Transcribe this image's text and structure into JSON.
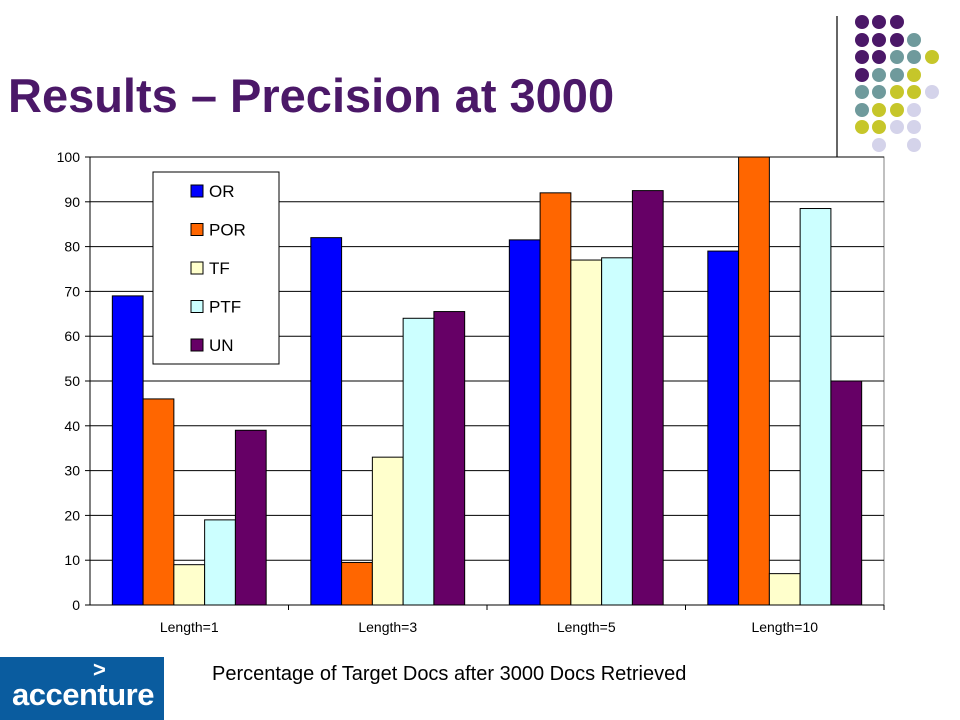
{
  "slide": {
    "title": "Results – Precision at 3000",
    "caption": "Percentage of Target Docs after 3000 Docs Retrieved",
    "logo_text": "accenture",
    "logo_mark": ">"
  },
  "colors": {
    "title": "#4b1868",
    "dot_purple": "#4b1868",
    "dot_teal": "#6f9a9c",
    "dot_lime": "#c6c62a",
    "dot_lavender": "#d4d3ea",
    "logo_bg": "#0a5c9f"
  },
  "chart_data": {
    "type": "bar",
    "categories": [
      "Length=1",
      "Length=3",
      "Length=5",
      "Length=10"
    ],
    "series": [
      {
        "name": "OR",
        "color": "#0000ff",
        "values": [
          69,
          82,
          81.5,
          79
        ]
      },
      {
        "name": "POR",
        "color": "#ff6600",
        "values": [
          46,
          9.5,
          92,
          100
        ]
      },
      {
        "name": "TF",
        "color": "#ffffcc",
        "values": [
          9,
          33,
          77,
          7
        ]
      },
      {
        "name": "PTF",
        "color": "#ccffff",
        "values": [
          19,
          64,
          77.5,
          88.5
        ]
      },
      {
        "name": "UN",
        "color": "#660066",
        "values": [
          39,
          65.5,
          92.5,
          50
        ]
      }
    ],
    "ylim": [
      0,
      100
    ],
    "yticks": [
      0,
      10,
      20,
      30,
      40,
      50,
      60,
      70,
      80,
      90,
      100
    ],
    "grid": true,
    "legend": "top-left, inside plot"
  }
}
